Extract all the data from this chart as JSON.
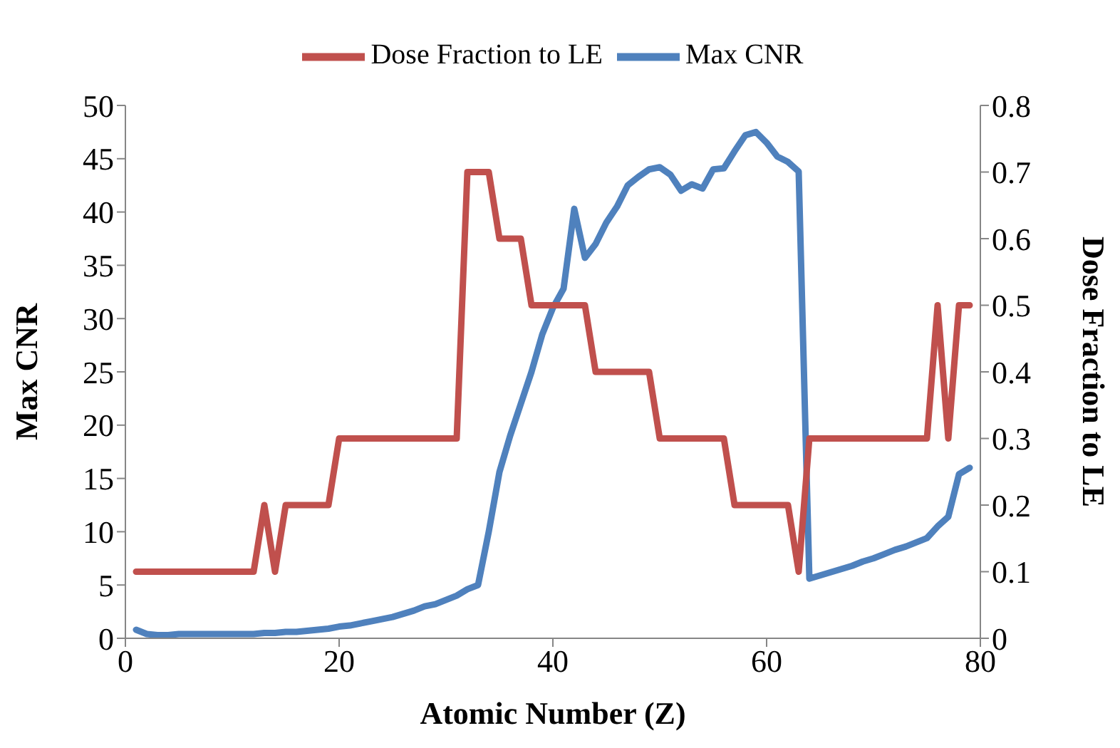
{
  "chart_data": {
    "type": "line",
    "xlabel": "Atomic Number (Z)",
    "ylabel": "Max CNR",
    "y2label": "Dose Fraction to LE",
    "x": [
      1,
      2,
      3,
      4,
      5,
      6,
      7,
      8,
      9,
      10,
      11,
      12,
      13,
      14,
      15,
      16,
      17,
      18,
      19,
      20,
      21,
      22,
      23,
      24,
      25,
      26,
      27,
      28,
      29,
      30,
      31,
      32,
      33,
      34,
      35,
      36,
      37,
      38,
      39,
      40,
      41,
      42,
      43,
      44,
      45,
      46,
      47,
      48,
      49,
      50,
      51,
      52,
      53,
      54,
      55,
      56,
      57,
      58,
      59,
      60,
      61,
      62,
      63,
      64,
      65,
      66,
      67,
      68,
      69,
      70,
      71,
      72,
      73,
      74,
      75,
      76,
      77,
      78,
      79
    ],
    "series": [
      {
        "name": "Max CNR",
        "color": "#4f81bd",
        "values": [
          0.8,
          0.4,
          0.3,
          0.3,
          0.4,
          0.4,
          0.4,
          0.4,
          0.4,
          0.4,
          0.4,
          0.4,
          0.5,
          0.5,
          0.6,
          0.6,
          0.7,
          0.8,
          0.9,
          1.1,
          1.2,
          1.4,
          1.6,
          1.8,
          2.0,
          2.3,
          2.6,
          3.0,
          3.2,
          3.6,
          4.0,
          4.6,
          5.0,
          10,
          15.6,
          19,
          22,
          25,
          28.5,
          31,
          32.8,
          40.3,
          35.7,
          37,
          39,
          40.5,
          42.5,
          43.3,
          44,
          44.2,
          43.5,
          42,
          42.6,
          42.2,
          44,
          44.1,
          45.7,
          47.2,
          47.5,
          46.5,
          45.2,
          44.7,
          43.8,
          5.6,
          5.9,
          6.2,
          6.5,
          6.8,
          7.2,
          7.5,
          7.9,
          8.3,
          8.6,
          9.0,
          9.4,
          10.5,
          11.4,
          15.4,
          16
        ]
      },
      {
        "name": "Dose Fraction to LE",
        "color": "#c0504d",
        "axis": "y2",
        "values": [
          0.1,
          0.1,
          0.1,
          0.1,
          0.1,
          0.1,
          0.1,
          0.1,
          0.1,
          0.1,
          0.1,
          0.1,
          0.2,
          0.1,
          0.2,
          0.2,
          0.2,
          0.2,
          0.2,
          0.3,
          0.3,
          0.3,
          0.3,
          0.3,
          0.3,
          0.3,
          0.3,
          0.3,
          0.3,
          0.3,
          0.3,
          0.7,
          0.7,
          0.7,
          0.6,
          0.6,
          0.6,
          0.5,
          0.5,
          0.5,
          0.5,
          0.5,
          0.5,
          0.4,
          0.4,
          0.4,
          0.4,
          0.4,
          0.4,
          0.3,
          0.3,
          0.3,
          0.3,
          0.3,
          0.3,
          0.3,
          0.2,
          0.2,
          0.2,
          0.2,
          0.2,
          0.2,
          0.1,
          0.3,
          0.3,
          0.3,
          0.3,
          0.3,
          0.3,
          0.3,
          0.3,
          0.3,
          0.3,
          0.3,
          0.3,
          0.5,
          0.3,
          0.5,
          0.5
        ]
      }
    ],
    "xlim": [
      0,
      80
    ],
    "xticks": [
      0,
      20,
      40,
      60,
      80
    ],
    "ylim": [
      0,
      50
    ],
    "yticks": [
      0,
      5,
      10,
      15,
      20,
      25,
      30,
      35,
      40,
      45,
      50
    ],
    "y2lim": [
      0,
      0.8
    ],
    "y2ticks": [
      0,
      0.1,
      0.2,
      0.3,
      0.4,
      0.5,
      0.6,
      0.7,
      0.8
    ],
    "grid": false,
    "legend": "top",
    "marker": "none",
    "line_style": "solid"
  }
}
